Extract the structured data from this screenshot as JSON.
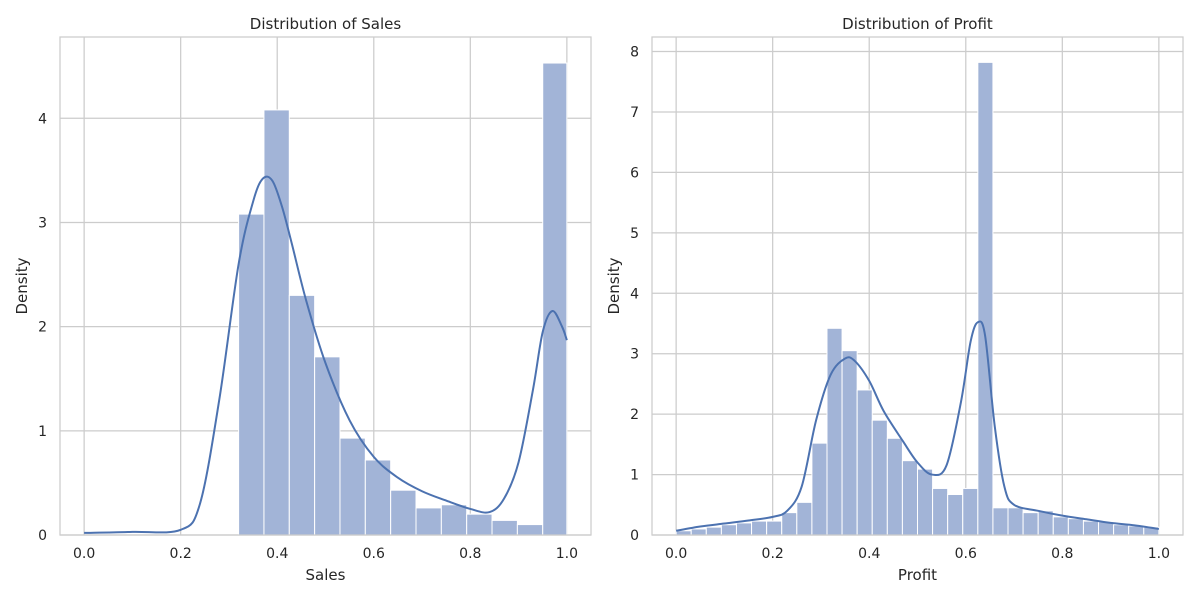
{
  "colors": {
    "bar": "#a2b4d7",
    "kde": "#4c72b0",
    "grid": "#cccccc",
    "text": "#262626"
  },
  "chart_data": [
    {
      "type": "bar",
      "title": "Distribution of Sales",
      "xlabel": "Sales",
      "ylabel": "Density",
      "xlim": [
        -0.05,
        1.05
      ],
      "ylim": [
        0,
        4.78
      ],
      "grid": true,
      "xticks": [
        0.0,
        0.2,
        0.4,
        0.6,
        0.8,
        1.0
      ],
      "xtick_labels": [
        "0.0",
        "0.2",
        "0.4",
        "0.6",
        "0.8",
        "1.0"
      ],
      "yticks": [
        0,
        1,
        2,
        3,
        4
      ],
      "ytick_labels": [
        "0",
        "1",
        "2",
        "3",
        "4"
      ],
      "bins": {
        "edges": [
          0.32,
          0.3725,
          0.425,
          0.4775,
          0.53,
          0.5825,
          0.635,
          0.6875,
          0.74,
          0.7925,
          0.845,
          0.8975,
          0.95,
          1.0
        ],
        "values": [
          3.08,
          4.08,
          2.3,
          1.71,
          0.93,
          0.72,
          0.43,
          0.26,
          0.29,
          0.2,
          0.14,
          0.1,
          4.53
        ]
      },
      "kde": {
        "x": [
          0.0,
          0.1,
          0.2,
          0.24,
          0.28,
          0.32,
          0.35,
          0.37,
          0.39,
          0.41,
          0.43,
          0.46,
          0.5,
          0.55,
          0.6,
          0.65,
          0.7,
          0.75,
          0.8,
          0.84,
          0.87,
          0.9,
          0.93,
          0.95,
          0.97,
          0.99,
          1.0
        ],
        "y": [
          0.02,
          0.03,
          0.05,
          0.3,
          1.3,
          2.6,
          3.2,
          3.42,
          3.4,
          3.15,
          2.8,
          2.25,
          1.65,
          1.1,
          0.75,
          0.55,
          0.42,
          0.33,
          0.25,
          0.22,
          0.35,
          0.7,
          1.4,
          1.95,
          2.15,
          2.0,
          1.87
        ]
      }
    },
    {
      "type": "bar",
      "title": "Distribution of Profit",
      "xlabel": "Profit",
      "ylabel": "Density",
      "xlim": [
        -0.05,
        1.05
      ],
      "ylim": [
        0,
        8.24
      ],
      "grid": true,
      "xticks": [
        0.0,
        0.2,
        0.4,
        0.6,
        0.8,
        1.0
      ],
      "xtick_labels": [
        "0.0",
        "0.2",
        "0.4",
        "0.6",
        "0.8",
        "1.0"
      ],
      "yticks": [
        0,
        1,
        2,
        3,
        4,
        5,
        6,
        7,
        8
      ],
      "ytick_labels": [
        "0",
        "1",
        "2",
        "3",
        "4",
        "5",
        "6",
        "7",
        "8"
      ],
      "bins": {
        "edges": [
          0.0,
          0.03125,
          0.0625,
          0.09375,
          0.125,
          0.15625,
          0.1875,
          0.21875,
          0.25,
          0.28125,
          0.3125,
          0.34375,
          0.375,
          0.40625,
          0.4375,
          0.46875,
          0.5,
          0.53125,
          0.5625,
          0.59375,
          0.625,
          0.65625,
          0.6875,
          0.71875,
          0.75,
          0.78125,
          0.8125,
          0.84375,
          0.875,
          0.90625,
          0.9375,
          0.96875,
          1.0
        ],
        "values": [
          0.07,
          0.1,
          0.13,
          0.17,
          0.2,
          0.23,
          0.23,
          0.37,
          0.54,
          1.52,
          3.42,
          3.05,
          2.4,
          1.9,
          1.6,
          1.23,
          1.09,
          0.77,
          0.67,
          0.77,
          7.82,
          0.45,
          0.45,
          0.37,
          0.4,
          0.3,
          0.27,
          0.23,
          0.22,
          0.17,
          0.15,
          0.13
        ]
      },
      "kde": {
        "x": [
          0.0,
          0.05,
          0.1,
          0.15,
          0.2,
          0.23,
          0.26,
          0.29,
          0.32,
          0.35,
          0.37,
          0.4,
          0.43,
          0.47,
          0.5,
          0.53,
          0.56,
          0.59,
          0.61,
          0.625,
          0.64,
          0.66,
          0.68,
          0.7,
          0.75,
          0.8,
          0.85,
          0.9,
          0.95,
          1.0
        ],
        "y": [
          0.07,
          0.14,
          0.19,
          0.24,
          0.3,
          0.4,
          0.8,
          1.9,
          2.65,
          2.92,
          2.88,
          2.55,
          2.05,
          1.55,
          1.2,
          1.0,
          1.15,
          2.2,
          3.2,
          3.52,
          3.3,
          1.8,
          0.8,
          0.5,
          0.4,
          0.32,
          0.26,
          0.2,
          0.16,
          0.1
        ]
      }
    }
  ]
}
